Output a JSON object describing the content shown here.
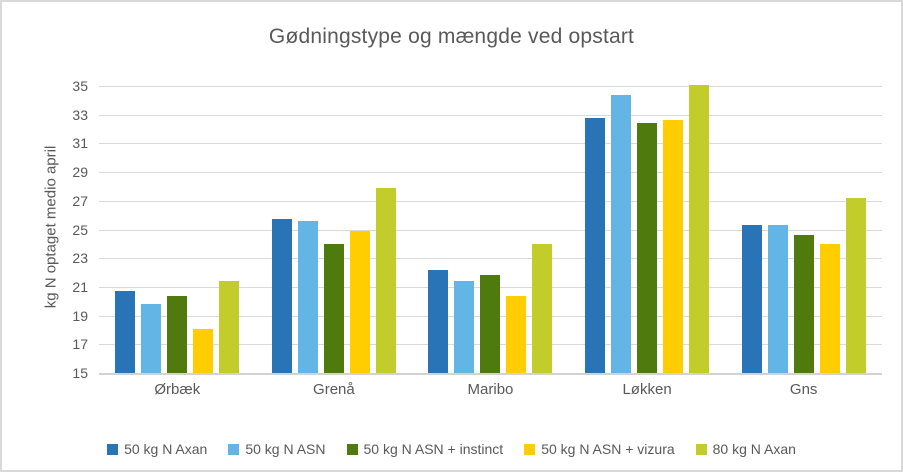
{
  "chart_data": {
    "type": "bar",
    "title": "Gødningstype og mængde ved opstart",
    "xlabel": "",
    "ylabel": "kg N optaget medio april",
    "ylim": [
      15,
      35
    ],
    "y_tick_step": 2,
    "y_ticks": [
      15,
      17,
      19,
      21,
      23,
      25,
      27,
      29,
      31,
      33,
      35
    ],
    "grid": true,
    "legend_position": "bottom",
    "categories": [
      "Ørbæk",
      "Grenå",
      "Maribo",
      "Løkken",
      "Gns"
    ],
    "series": [
      {
        "name": "50 kg N Axan",
        "color": "#2874B6",
        "values": [
          20.7,
          25.7,
          22.2,
          32.8,
          25.3
        ]
      },
      {
        "name": "50 kg N ASN",
        "color": "#63B5E5",
        "values": [
          19.8,
          25.6,
          21.4,
          34.4,
          25.3
        ]
      },
      {
        "name": "50 kg N ASN + instinct",
        "color": "#4F7A0E",
        "values": [
          20.4,
          24.0,
          21.8,
          32.4,
          24.6
        ]
      },
      {
        "name": "50 kg N ASN + vizura",
        "color": "#FFCD00",
        "values": [
          18.1,
          24.9,
          20.4,
          32.6,
          24.0
        ]
      },
      {
        "name": "80 kg N Axan",
        "color": "#C2CC2A",
        "values": [
          21.4,
          27.9,
          24.0,
          35.1,
          27.2
        ]
      }
    ]
  },
  "colors": {
    "text": "#595959",
    "gridline": "#D9D9D9",
    "axis_line": "#D2D2D2",
    "frame_border": "#D9D9D9",
    "background": "#FFFFFF"
  }
}
